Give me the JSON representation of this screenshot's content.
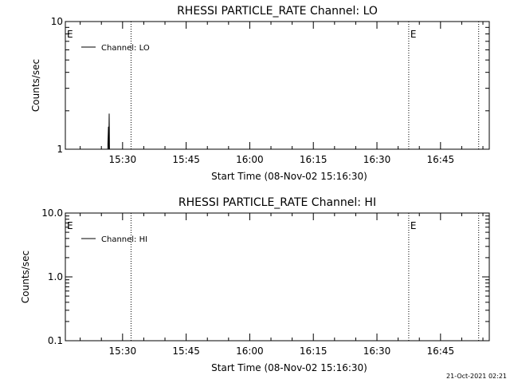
{
  "chart_data": [
    {
      "type": "line",
      "title": "RHESSI PARTICLE_RATE Channel: LO",
      "xlabel": "Start Time (08-Nov-02 15:16:30)",
      "ylabel": "Counts/sec",
      "y_scale": "log",
      "ylim": [
        1,
        10
      ],
      "y_ticks": [
        {
          "value": 1,
          "label": "1"
        },
        {
          "value": 10,
          "label": "10"
        }
      ],
      "xlim": [
        "15:16:30",
        "16:56:30"
      ],
      "x_ticks": [
        "15:30",
        "15:45",
        "16:00",
        "16:15",
        "16:30",
        "16:45"
      ],
      "legend_position": "top-left",
      "series": [
        {
          "name": "Channel: LO",
          "points": [
            {
              "x": "15:26:30",
              "y": 1
            },
            {
              "x": "15:26:40",
              "y": 1.5
            },
            {
              "x": "15:26:45",
              "y": 1
            },
            {
              "x": "15:26:50",
              "y": 1.9
            },
            {
              "x": "15:26:55",
              "y": 1
            }
          ]
        }
      ],
      "event_lines": [
        "15:32:00",
        "16:37:30",
        "16:54:00"
      ],
      "markers": [
        {
          "label": "E",
          "x": "15:16:30"
        },
        {
          "label": "E",
          "x": "16:37:30"
        }
      ]
    },
    {
      "type": "line",
      "title": "RHESSI PARTICLE_RATE Channel: HI",
      "xlabel": "Start Time (08-Nov-02 15:16:30)",
      "ylabel": "Counts/sec",
      "y_scale": "log",
      "ylim": [
        0.1,
        10
      ],
      "y_ticks": [
        {
          "value": 0.1,
          "label": "0.1"
        },
        {
          "value": 1,
          "label": "1.0"
        },
        {
          "value": 10,
          "label": "10.0"
        }
      ],
      "xlim": [
        "15:16:30",
        "16:56:30"
      ],
      "x_ticks": [
        "15:30",
        "15:45",
        "16:00",
        "16:15",
        "16:30",
        "16:45"
      ],
      "legend_position": "top-left",
      "series": [
        {
          "name": "Channel: HI",
          "points": []
        }
      ],
      "event_lines": [
        "15:32:00",
        "16:37:30",
        "16:54:00"
      ],
      "markers": [
        {
          "label": "E",
          "x": "15:16:30"
        },
        {
          "label": "E",
          "x": "16:37:30"
        }
      ]
    }
  ],
  "footer": {
    "timestamp": "21-Oct-2021 02:21"
  }
}
